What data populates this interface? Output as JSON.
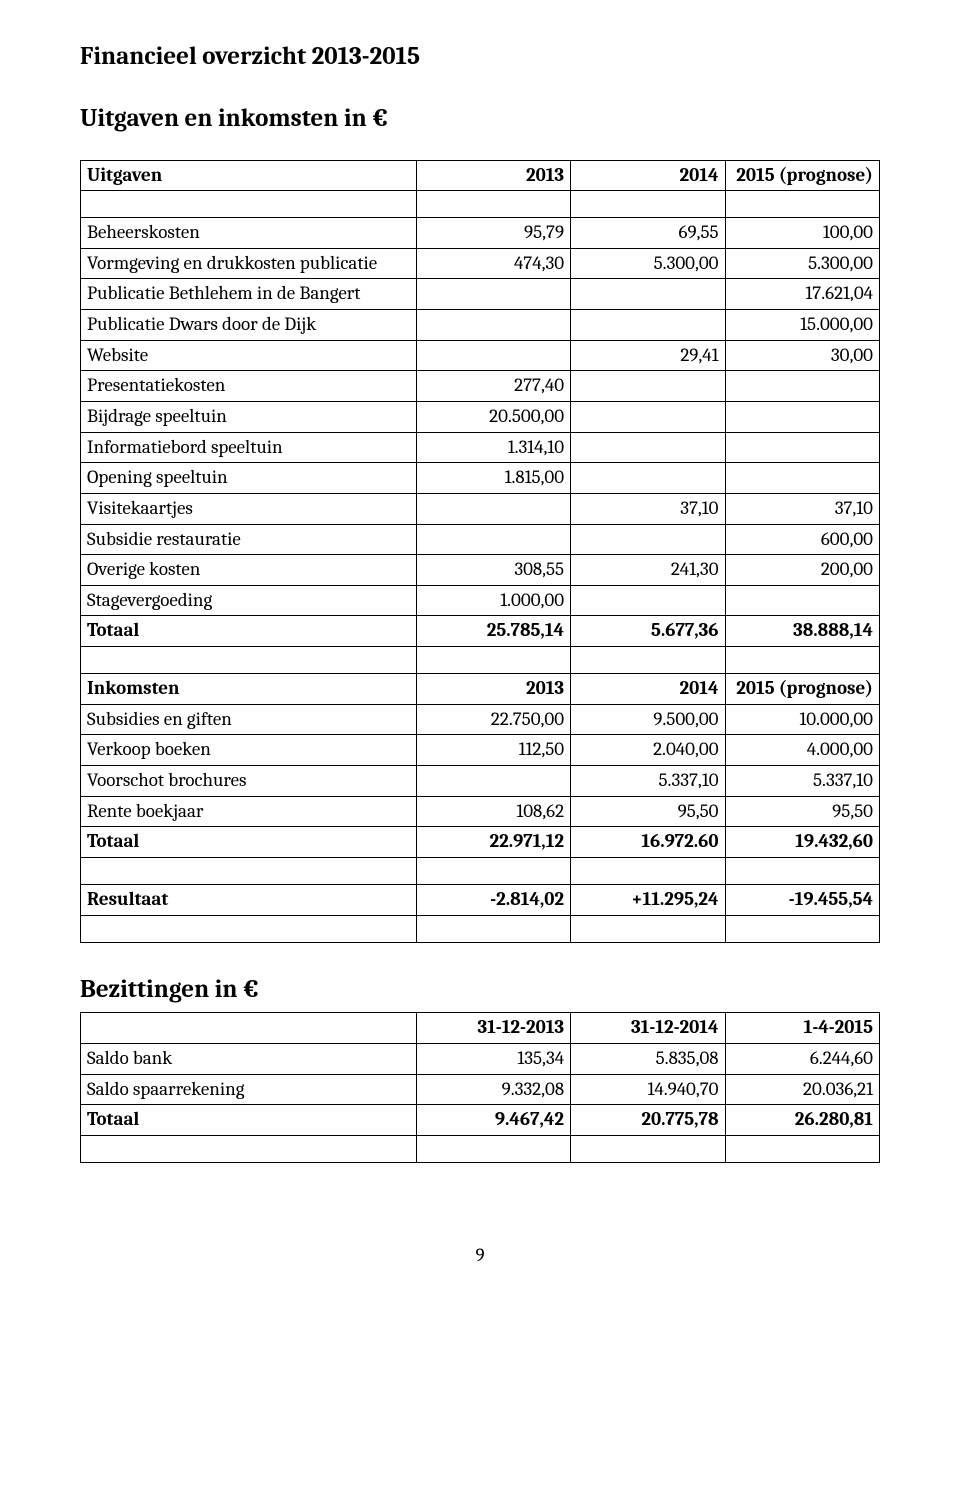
{
  "title": "Financieel overzicht 2013-2015",
  "subtitle": "Uitgaven en inkomsten in €",
  "uitgaven": {
    "header": {
      "label": "Uitgaven",
      "c1": "2013",
      "c2": "2014",
      "c3": "2015 (prognose)"
    },
    "rows": [
      {
        "label": "Beheerskosten",
        "c1": "95,79",
        "c2": "69,55",
        "c3": "100,00"
      },
      {
        "label": "Vormgeving en drukkosten publicatie",
        "c1": "474,30",
        "c2": "5.300,00",
        "c3": "5.300,00"
      },
      {
        "label": "Publicatie Bethlehem in de Bangert",
        "c1": "",
        "c2": "",
        "c3": "17.621,04"
      },
      {
        "label": "Publicatie Dwars door de Dijk",
        "c1": "",
        "c2": "",
        "c3": "15.000,00"
      },
      {
        "label": "Website",
        "c1": "",
        "c2": "29,41",
        "c3": "30,00"
      },
      {
        "label": "Presentatiekosten",
        "c1": "277,40",
        "c2": "",
        "c3": ""
      },
      {
        "label": "Bijdrage speeltuin",
        "c1": "20.500,00",
        "c2": "",
        "c3": ""
      },
      {
        "label": "Informatiebord speeltuin",
        "c1": "1.314,10",
        "c2": "",
        "c3": ""
      },
      {
        "label": "Opening speeltuin",
        "c1": "1.815,00",
        "c2": "",
        "c3": ""
      },
      {
        "label": "Visitekaartjes",
        "c1": "",
        "c2": "37,10",
        "c3": "37,10"
      },
      {
        "label": "Subsidie restauratie",
        "c1": "",
        "c2": "",
        "c3": "600,00"
      },
      {
        "label": "Overige kosten",
        "c1": "308,55",
        "c2": "241,30",
        "c3": "200,00"
      },
      {
        "label": "Stagevergoeding",
        "c1": "1.000,00",
        "c2": "",
        "c3": ""
      }
    ],
    "totaal": {
      "label": "Totaal",
      "c1": "25.785,14",
      "c2": "5.677,36",
      "c3": "38.888,14"
    }
  },
  "inkomsten": {
    "header": {
      "label": "Inkomsten",
      "c1": "2013",
      "c2": "2014",
      "c3": "2015 (prognose)"
    },
    "rows": [
      {
        "label": "Subsidies en giften",
        "c1": "22.750,00",
        "c2": "9.500,00",
        "c3": "10.000,00"
      },
      {
        "label": "Verkoop boeken",
        "c1": "112,50",
        "c2": "2.040,00",
        "c3": "4.000,00"
      },
      {
        "label": "Voorschot brochures",
        "c1": "",
        "c2": "5.337,10",
        "c3": "5.337,10"
      },
      {
        "label": "Rente boekjaar",
        "c1": "108,62",
        "c2": "95,50",
        "c3": "95,50"
      }
    ],
    "totaal": {
      "label": "Totaal",
      "c1": "22.971,12",
      "c2": "16.972.60",
      "c3": "19.432,60"
    }
  },
  "resultaat": {
    "label": "Resultaat",
    "c1": "-2.814,02",
    "c2": "+11.295,24",
    "c3": "-19.455,54"
  },
  "bezittingen": {
    "title": "Bezittingen in €",
    "header": {
      "label": "",
      "c1": "31-12-2013",
      "c2": "31-12-2014",
      "c3": "1-4-2015"
    },
    "rows": [
      {
        "label": "Saldo bank",
        "c1": "135,34",
        "c2": "5.835,08",
        "c3": "6.244,60"
      },
      {
        "label": "Saldo spaarrekening",
        "c1": "9.332,08",
        "c2": "14.940,70",
        "c3": "20.036,21"
      }
    ],
    "totaal": {
      "label": "Totaal",
      "c1": "9.467,42",
      "c2": "20.775,78",
      "c3": "26.280,81"
    }
  },
  "page_number": "9"
}
